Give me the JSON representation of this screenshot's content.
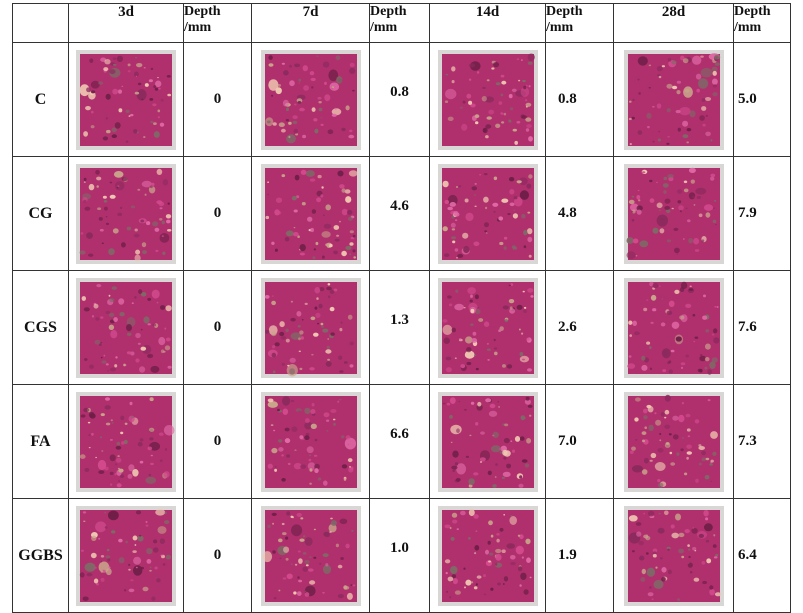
{
  "headers": [
    "3d",
    "Depth /mm",
    "7d",
    "Depth /mm",
    "14d",
    "Depth /mm",
    "28d",
    "Depth /mm"
  ],
  "header_cells": [
    {
      "label": "3d",
      "kind": "age"
    },
    {
      "label": "Depth\n/mm",
      "kind": "depth"
    },
    {
      "label": "7d",
      "kind": "age"
    },
    {
      "label": "Depth\n/mm",
      "kind": "depth"
    },
    {
      "label": "14d",
      "kind": "age"
    },
    {
      "label": "Depth\n/mm",
      "kind": "depth"
    },
    {
      "label": "28d",
      "kind": "age"
    },
    {
      "label": "Depth\n/mm",
      "kind": "depth"
    }
  ],
  "rows": [
    {
      "mix": "C",
      "depths": [
        "0",
        "0.8",
        "0.8",
        "5.0"
      ]
    },
    {
      "mix": "CG",
      "depths": [
        "0",
        "4.6",
        "4.8",
        "7.9"
      ]
    },
    {
      "mix": "CGS",
      "depths": [
        "0",
        "1.3",
        "2.6",
        "7.6"
      ]
    },
    {
      "mix": "FA",
      "depths": [
        "0",
        "6.6",
        "7.0",
        "7.3"
      ]
    },
    {
      "mix": "GGBS",
      "depths": [
        "0",
        "1.0",
        "1.9",
        "6.4"
      ]
    }
  ],
  "colors": {
    "specimen_base": "#b0306e",
    "specimen_dark": "#6e1f48",
    "specimen_light": "#e06aa6",
    "aggregate": "#c9a48a",
    "border": "#333333"
  }
}
